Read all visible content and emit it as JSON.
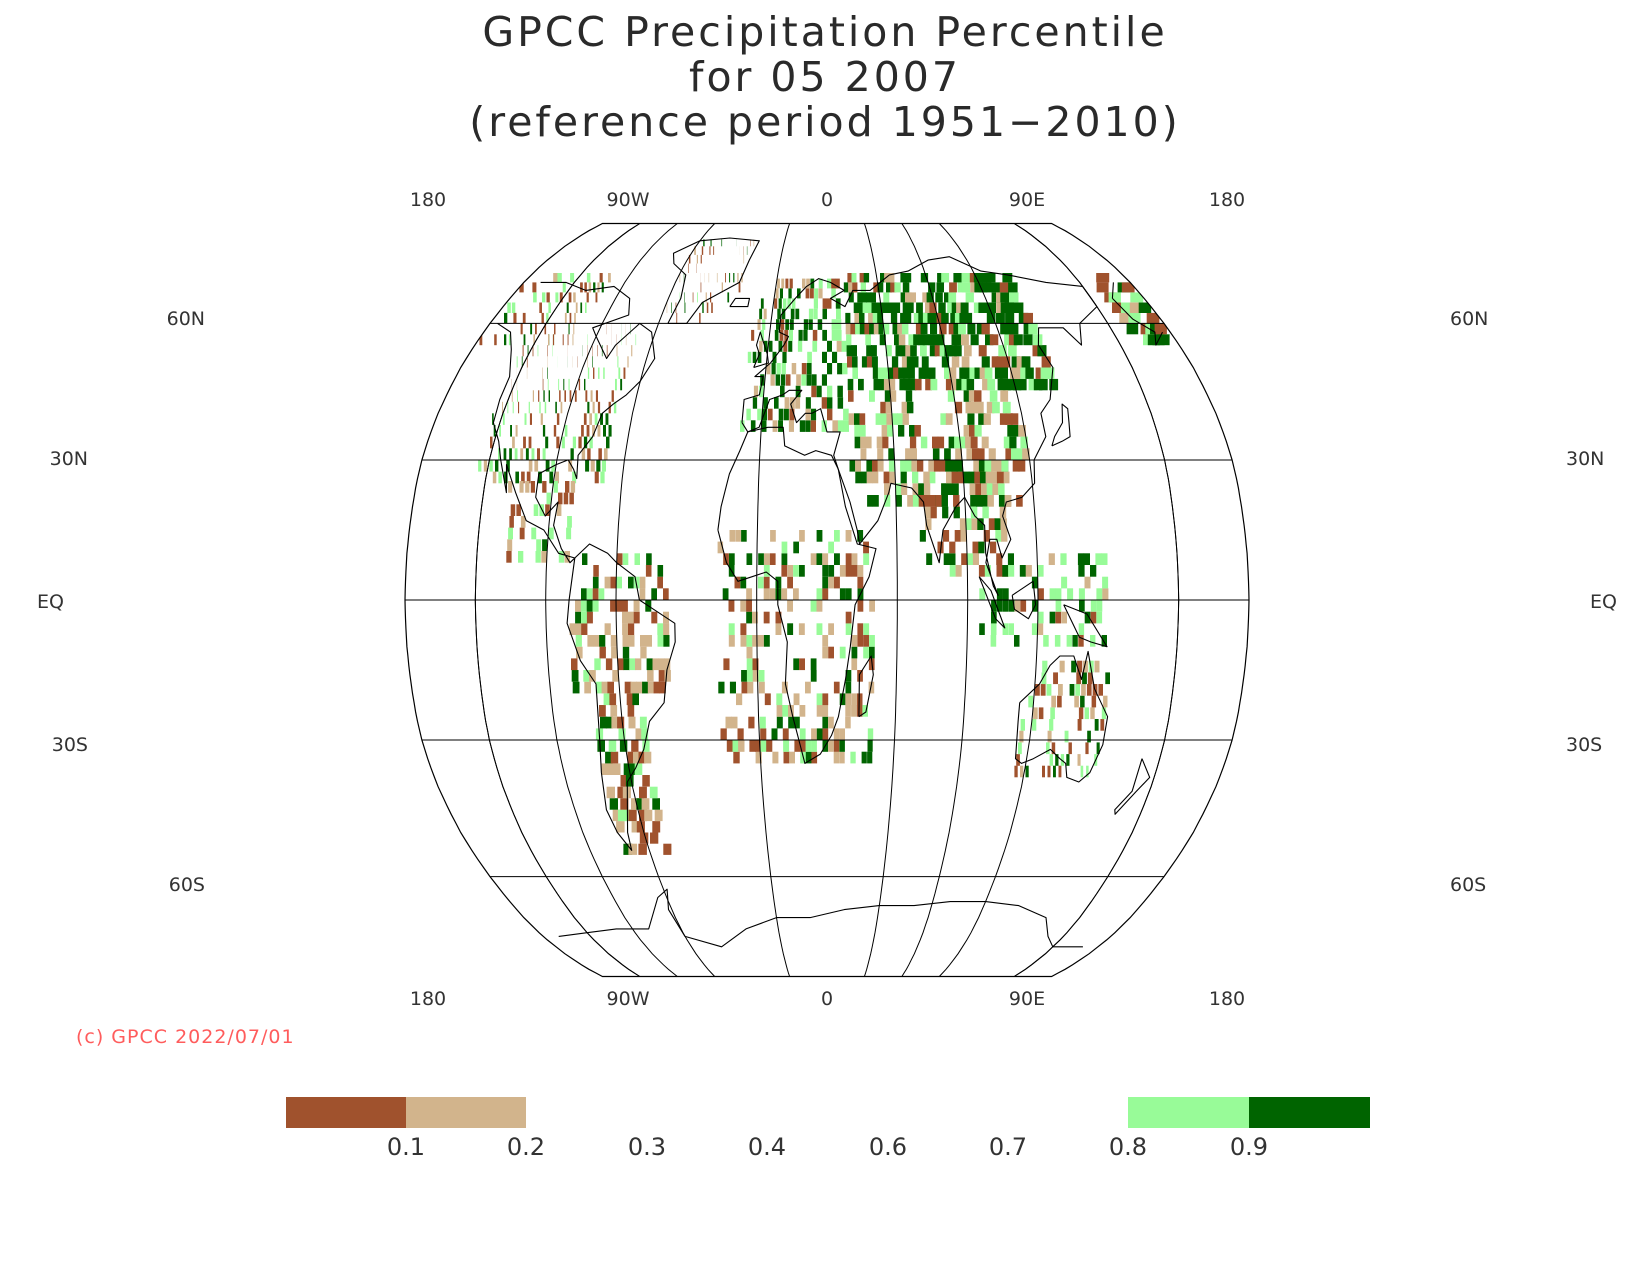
{
  "title_lines": [
    "GPCC Precipitation Percentile",
    "for 05 2007",
    "(reference period 1951−2010)"
  ],
  "copyright": "(c) GPCC 2022/07/01",
  "projection": "Robinson",
  "longitude_labels_top": [
    "180",
    "90W",
    "0",
    "90E",
    "180"
  ],
  "longitude_labels_bottom": [
    "180",
    "90W",
    "0",
    "90E",
    "180"
  ],
  "latitude_labels": {
    "60N": "60N",
    "30N": "30N",
    "EQ": "EQ",
    "30S": "30S",
    "60S": "60S"
  },
  "colorbar": {
    "tick_labels": [
      "0.1",
      "0.2",
      "0.3",
      "0.4",
      "0.6",
      "0.7",
      "0.8",
      "0.9"
    ],
    "classes": [
      {
        "range": "< 0.1",
        "color": "#a0522d"
      },
      {
        "range": "0.1 - 0.2",
        "color": "#d2b48c"
      },
      {
        "range": "0.2 - 0.8",
        "color": "#ffffff"
      },
      {
        "range": "0.8 - 0.9",
        "color": "#98fb98"
      },
      {
        "range": "> 0.9",
        "color": "#006400"
      }
    ]
  },
  "colors": {
    "very_dry": "#a0522d",
    "dry": "#d2b48c",
    "wet": "#98fb98",
    "very_wet": "#006400",
    "copyright": "#ff5c5c",
    "coast": "#000000"
  }
}
